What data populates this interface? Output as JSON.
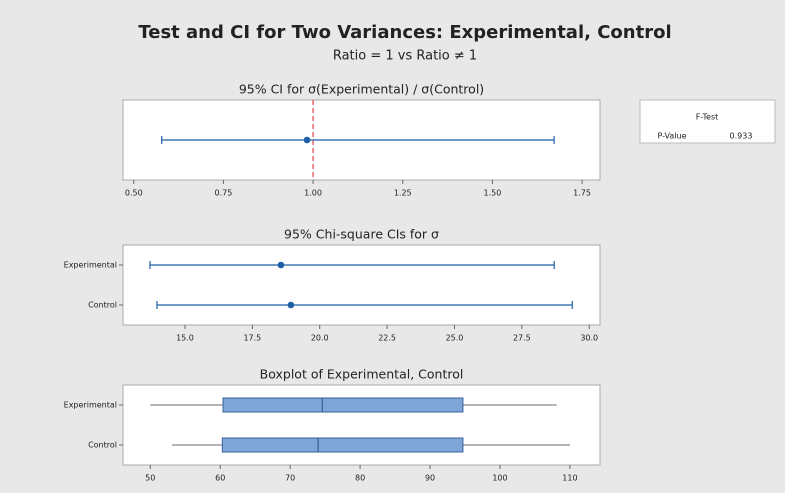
{
  "header": {
    "title": "Test and CI for Two Variances: Experimental, Control",
    "subtitle": "Ratio = 1 vs Ratio ≠ 1"
  },
  "f_test": {
    "title": "F-Test",
    "label": "P-Value",
    "value": "0.933"
  },
  "chart_data": [
    {
      "type": "errorbar",
      "title": "95% CI for σ(Experimental) / σ(Control)",
      "color": "#1f5fa8",
      "estimate": [
        0.983
      ],
      "lower": [
        0.578
      ],
      "upper": [
        1.672
      ],
      "reference_line": 1,
      "reference_color": "#e05050",
      "xlim": [
        0.47,
        1.8
      ],
      "xticks": [
        {
          "value": 0.5,
          "label": "0.50"
        },
        0.75,
        {
          "value": 1,
          "label": "1.00"
        },
        1.25,
        {
          "value": 1.5,
          "label": "1.50"
        },
        1.75
      ]
    },
    {
      "type": "errorbar",
      "title": "95% Chi-square CIs for σ",
      "color": "#1f5fa8",
      "categories": [
        "Experimental",
        "Control"
      ],
      "estimate": [
        18.56,
        18.93
      ],
      "lower": [
        13.7,
        13.96
      ],
      "upper": [
        28.7,
        29.37
      ],
      "xlim": [
        12.7,
        30.4
      ],
      "xticks": [
        {
          "value": 15,
          "label": "15.0"
        },
        17.5,
        {
          "value": 20,
          "label": "20.0"
        },
        22.5,
        {
          "value": 25,
          "label": "25.0"
        },
        27.5,
        {
          "value": 30,
          "label": "30.0"
        }
      ]
    },
    {
      "type": "box",
      "title": "Boxplot of Experimental, Control",
      "color": "#7ea6d8",
      "categories": [
        "Experimental",
        "Control"
      ],
      "min": [
        50,
        53.1
      ],
      "q1": [
        60.4,
        60.3
      ],
      "median": [
        74.6,
        74
      ],
      "q3": [
        94.7,
        94.7
      ],
      "max": [
        108.1,
        110
      ],
      "xlim": [
        46.1,
        114.3
      ],
      "xticks": [
        50,
        60,
        70,
        80,
        90,
        100,
        110
      ]
    }
  ]
}
